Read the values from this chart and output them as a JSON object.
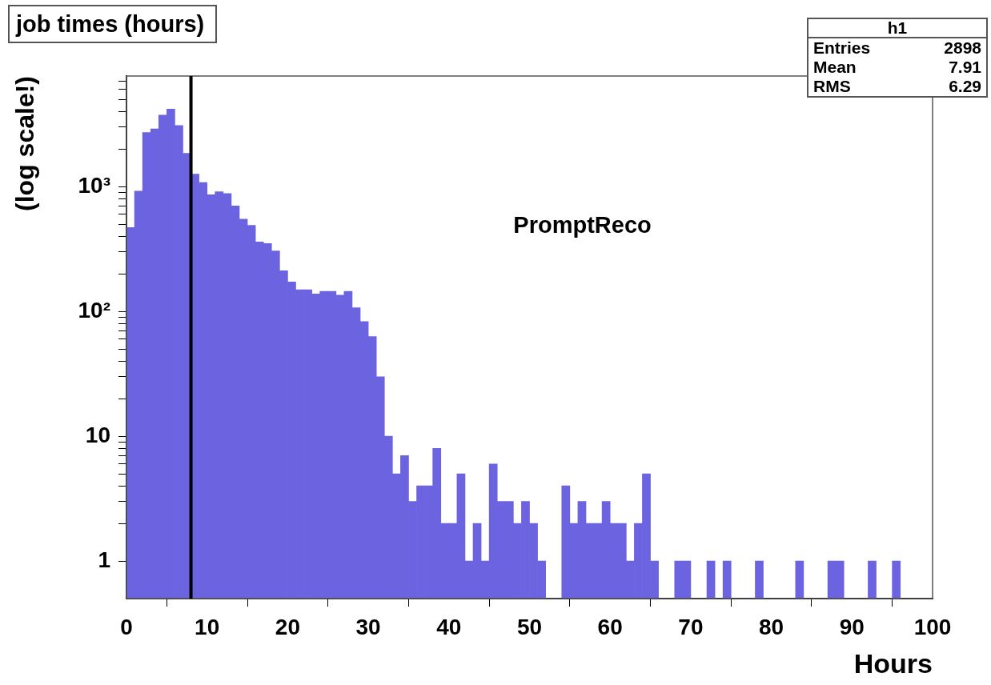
{
  "chart_data": {
    "type": "histogram",
    "title": "job times (hours)",
    "xlabel": "Hours",
    "ylabel": "(log scale!)",
    "bins": [
      0,
      1,
      2,
      3,
      4,
      5,
      6,
      7,
      8,
      9,
      10,
      11,
      12,
      13,
      14,
      15,
      16,
      17,
      18,
      19,
      20,
      21,
      22,
      23,
      24,
      25,
      26,
      27,
      28,
      29,
      30,
      31,
      32,
      33,
      34,
      35,
      36,
      37,
      38,
      39,
      40,
      41,
      42,
      43,
      44,
      45,
      46,
      47,
      48,
      49,
      50,
      51,
      52,
      53,
      54,
      55,
      56,
      57,
      58,
      59,
      60,
      61,
      62,
      63,
      64,
      65,
      66,
      67,
      68,
      69,
      70,
      71,
      72,
      73,
      74,
      75,
      76,
      77,
      78,
      79,
      80,
      81,
      82,
      83,
      84,
      85,
      86,
      87,
      88,
      89,
      90,
      91,
      92,
      93,
      94,
      95,
      96,
      97,
      98,
      99,
      100
    ],
    "values": [
      470,
      920,
      2720,
      2900,
      3740,
      4190,
      3090,
      1850,
      1260,
      1080,
      860,
      910,
      880,
      700,
      550,
      490,
      360,
      350,
      305,
      212,
      172,
      149,
      149,
      138,
      145,
      145,
      135,
      145,
      107,
      83,
      63,
      30,
      10,
      5,
      7,
      3,
      4,
      4,
      8,
      2,
      2,
      5,
      1,
      2,
      1,
      6,
      3,
      3,
      2,
      3,
      2,
      1,
      null,
      null,
      4,
      2,
      3,
      2,
      2,
      3,
      2,
      2,
      1,
      2,
      5,
      1,
      null,
      null,
      1,
      1,
      null,
      null,
      1,
      null,
      1,
      null,
      null,
      null,
      1,
      null,
      null,
      null,
      null,
      1,
      null,
      null,
      null,
      1,
      1,
      null,
      null,
      null,
      1,
      null,
      null,
      1,
      null,
      null,
      null,
      null
    ],
    "color": "#6b63e0",
    "xlim": [
      0,
      100
    ],
    "xticks": [
      0,
      10,
      20,
      30,
      40,
      50,
      60,
      70,
      80,
      90,
      100
    ],
    "ylim": [
      0.5,
      7700
    ],
    "yticks": [
      1,
      {
        "value": 2,
        "label": null
      },
      {
        "value": 3,
        "label": null
      },
      {
        "value": 4,
        "label": null
      },
      {
        "value": 5,
        "label": null
      },
      {
        "value": 6,
        "label": null
      },
      {
        "value": 7,
        "label": null
      },
      {
        "value": 8,
        "label": null
      },
      {
        "value": 9,
        "label": null
      },
      10,
      {
        "value": 20,
        "label": null
      },
      {
        "value": 30,
        "label": null
      },
      {
        "value": 40,
        "label": null
      },
      {
        "value": 50,
        "label": null
      },
      {
        "value": 60,
        "label": null
      },
      {
        "value": 70,
        "label": null
      },
      {
        "value": 80,
        "label": null
      },
      {
        "value": 90,
        "label": null
      },
      {
        "value": 100,
        "label": "10²"
      },
      {
        "value": 200,
        "label": null
      },
      {
        "value": 300,
        "label": null
      },
      {
        "value": 400,
        "label": null
      },
      {
        "value": 500,
        "label": null
      },
      {
        "value": 600,
        "label": null
      },
      {
        "value": 700,
        "label": null
      },
      {
        "value": 800,
        "label": null
      },
      {
        "value": 900,
        "label": null
      },
      {
        "value": 1000,
        "label": "10³"
      },
      {
        "value": 2000,
        "label": null
      },
      {
        "value": 3000,
        "label": null
      },
      {
        "value": 4000,
        "label": null
      },
      {
        "value": 5000,
        "label": null
      },
      {
        "value": 6000,
        "label": null
      },
      {
        "value": 7000,
        "label": null
      }
    ],
    "log": "y",
    "grid": false,
    "legend": false,
    "ref_lines": [
      {
        "axis": "x",
        "value": 8,
        "color": "#000000"
      }
    ],
    "annotations": [
      "PromptReco",
      "h1",
      "Entries",
      "2898",
      "Mean",
      "7.91",
      "RMS",
      "6.29"
    ]
  }
}
